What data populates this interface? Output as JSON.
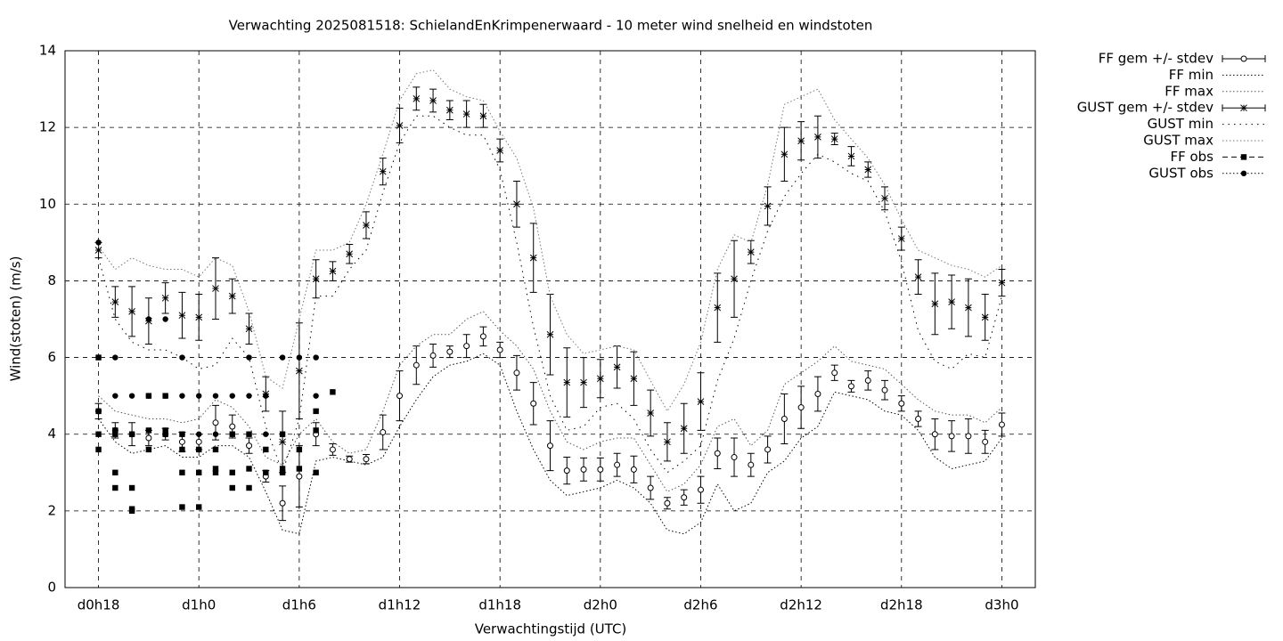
{
  "chart_data": {
    "type": "errorbar",
    "title": "Verwachting 2025081518: SchielandEnKrimpenerwaard - 10 meter wind snelheid en windstoten",
    "x_label": "Verwachtingstijd (UTC)",
    "y_label": "Wind(stoten) (m/s)",
    "xlim": [
      16,
      74
    ],
    "ylim": [
      0,
      14
    ],
    "yticks": [
      0,
      2,
      4,
      6,
      8,
      10,
      12,
      14
    ],
    "xticks": [
      {
        "value": 18,
        "label": "d0h18"
      },
      {
        "value": 24,
        "label": "d1h0"
      },
      {
        "value": 30,
        "label": "d1h6"
      },
      {
        "value": 36,
        "label": "d1h12"
      },
      {
        "value": 42,
        "label": "d1h18"
      },
      {
        "value": 48,
        "label": "d2h0"
      },
      {
        "value": 54,
        "label": "d2h6"
      },
      {
        "value": 60,
        "label": "d2h12"
      },
      {
        "value": 66,
        "label": "d2h18"
      },
      {
        "value": 72,
        "label": "d3h0"
      }
    ],
    "grid": true,
    "legend": "outside-right",
    "x": [
      18,
      19,
      20,
      21,
      22,
      23,
      24,
      25,
      26,
      27,
      28,
      29,
      30,
      31,
      32,
      33,
      34,
      35,
      36,
      37,
      38,
      39,
      40,
      41,
      42,
      43,
      44,
      45,
      46,
      47,
      48,
      49,
      50,
      51,
      52,
      53,
      54,
      55,
      56,
      57,
      58,
      59,
      60,
      61,
      62,
      63,
      64,
      65,
      66,
      67,
      68,
      69,
      70,
      71,
      72
    ],
    "series": [
      {
        "name": "FF gem +/- stdev",
        "color": "#000000",
        "marker": "circle-open",
        "dash": "solid",
        "values": [
          4.6,
          4.1,
          4.0,
          3.9,
          4.0,
          3.8,
          3.8,
          4.3,
          4.2,
          3.7,
          2.9,
          2.2,
          2.9,
          4.0,
          3.6,
          3.35,
          3.35,
          4.05,
          5.0,
          5.8,
          6.05,
          6.15,
          6.3,
          6.55,
          6.2,
          5.6,
          4.8,
          3.7,
          3.05,
          3.08,
          3.08,
          3.2,
          3.08,
          2.6,
          2.2,
          2.35,
          2.55,
          3.5,
          3.4,
          3.2,
          3.6,
          4.4,
          4.7,
          5.05,
          5.6,
          5.25,
          5.4,
          5.15,
          4.8,
          4.4,
          4.0,
          3.95,
          3.95,
          3.8,
          4.25
        ],
        "errors": [
          0.2,
          0.2,
          0.3,
          0.2,
          0.15,
          0.25,
          0.2,
          0.45,
          0.3,
          0.2,
          0.15,
          0.45,
          0.8,
          0.3,
          0.15,
          0.08,
          0.12,
          0.45,
          0.65,
          0.5,
          0.3,
          0.15,
          0.3,
          0.25,
          0.2,
          0.45,
          0.55,
          0.65,
          0.35,
          0.3,
          0.3,
          0.3,
          0.35,
          0.3,
          0.15,
          0.2,
          0.35,
          0.4,
          0.5,
          0.3,
          0.35,
          0.65,
          0.55,
          0.45,
          0.2,
          0.15,
          0.25,
          0.25,
          0.2,
          0.2,
          0.4,
          0.4,
          0.45,
          0.3,
          0.3
        ]
      },
      {
        "name": "FF min",
        "color": "#000000",
        "dash": "dotted",
        "values": [
          4.4,
          3.8,
          3.5,
          3.6,
          3.7,
          3.4,
          3.4,
          3.7,
          3.7,
          3.4,
          2.5,
          1.5,
          1.4,
          3.3,
          3.4,
          3.3,
          3.2,
          3.4,
          4.2,
          4.9,
          5.5,
          5.8,
          5.9,
          6.1,
          5.8,
          4.6,
          3.6,
          2.8,
          2.4,
          2.5,
          2.6,
          2.8,
          2.6,
          2.2,
          1.5,
          1.4,
          1.7,
          2.7,
          2.0,
          2.2,
          3.0,
          3.3,
          3.9,
          4.2,
          5.1,
          5.0,
          4.9,
          4.6,
          4.5,
          4.1,
          3.4,
          3.1,
          3.2,
          3.3,
          3.9
        ]
      },
      {
        "name": "FF max",
        "color": "#555555",
        "dash": "dotted",
        "values": [
          5.0,
          4.6,
          4.5,
          4.4,
          4.4,
          4.3,
          4.4,
          4.9,
          4.7,
          4.2,
          3.4,
          3.2,
          4.0,
          4.4,
          3.8,
          3.5,
          3.6,
          4.6,
          5.8,
          6.3,
          6.6,
          6.6,
          7.0,
          7.2,
          6.7,
          6.3,
          5.7,
          4.6,
          3.8,
          3.6,
          3.8,
          3.9,
          3.9,
          3.2,
          2.5,
          2.7,
          3.2,
          4.2,
          4.4,
          3.7,
          4.1,
          5.3,
          5.6,
          5.9,
          6.3,
          5.9,
          5.8,
          5.7,
          5.3,
          4.9,
          4.6,
          4.5,
          4.5,
          4.3,
          4.7
        ]
      },
      {
        "name": "GUST gem +/- stdev",
        "color": "#000000",
        "marker": "star",
        "dash": "solid",
        "values": [
          8.8,
          7.45,
          7.2,
          6.95,
          7.55,
          7.1,
          7.05,
          7.8,
          7.6,
          6.75,
          5.05,
          3.8,
          5.65,
          8.05,
          8.25,
          8.7,
          9.45,
          10.85,
          12.05,
          12.75,
          12.7,
          12.45,
          12.35,
          12.3,
          11.4,
          10.0,
          8.6,
          6.6,
          5.35,
          5.35,
          5.45,
          5.75,
          5.45,
          4.55,
          3.8,
          4.15,
          4.85,
          7.3,
          8.05,
          8.75,
          9.95,
          11.3,
          11.65,
          11.75,
          11.7,
          11.25,
          10.9,
          10.15,
          9.1,
          8.1,
          7.4,
          7.45,
          7.3,
          7.05,
          7.95
        ],
        "errors": [
          0.2,
          0.4,
          0.65,
          0.6,
          0.4,
          0.6,
          0.6,
          0.8,
          0.45,
          0.4,
          0.45,
          0.8,
          1.25,
          0.5,
          0.25,
          0.25,
          0.35,
          0.35,
          0.45,
          0.3,
          0.3,
          0.25,
          0.35,
          0.3,
          0.3,
          0.6,
          0.9,
          1.05,
          0.9,
          0.65,
          0.5,
          0.55,
          0.7,
          0.6,
          0.5,
          0.65,
          0.75,
          0.9,
          1.0,
          0.3,
          0.5,
          0.7,
          0.5,
          0.55,
          0.15,
          0.25,
          0.2,
          0.3,
          0.3,
          0.45,
          0.8,
          0.7,
          0.75,
          0.6,
          0.35
        ]
      },
      {
        "name": "GUST min",
        "color": "#000000",
        "dash": "sparse",
        "values": [
          8.6,
          7.0,
          6.4,
          6.2,
          6.2,
          6.0,
          5.7,
          5.8,
          6.5,
          6.0,
          4.2,
          3.0,
          4.4,
          7.6,
          7.6,
          8.3,
          8.8,
          10.3,
          11.6,
          12.3,
          12.3,
          12.0,
          11.8,
          11.8,
          10.9,
          9.0,
          6.8,
          5.0,
          4.1,
          4.2,
          4.7,
          4.8,
          4.4,
          3.6,
          3.0,
          3.3,
          3.7,
          5.4,
          6.5,
          8.0,
          9.3,
          10.2,
          10.8,
          11.3,
          11.1,
          10.8,
          10.6,
          9.8,
          8.5,
          6.7,
          5.9,
          5.7,
          6.1,
          6.0,
          7.6
        ]
      },
      {
        "name": "GUST max",
        "color": "#777777",
        "dash": "dotted",
        "values": [
          8.9,
          8.3,
          8.6,
          8.4,
          8.3,
          8.3,
          8.1,
          8.6,
          8.4,
          7.2,
          5.5,
          5.2,
          7.0,
          8.8,
          8.8,
          9.0,
          10.0,
          11.3,
          12.7,
          13.4,
          13.5,
          13.0,
          12.8,
          12.7,
          11.9,
          11.2,
          9.9,
          7.6,
          6.6,
          6.1,
          6.2,
          6.3,
          6.2,
          5.4,
          4.6,
          5.3,
          6.4,
          8.3,
          9.2,
          9.0,
          10.5,
          12.6,
          12.8,
          13.0,
          12.2,
          11.7,
          11.2,
          10.5,
          9.6,
          8.8,
          8.6,
          8.4,
          8.3,
          8.1,
          8.4
        ]
      },
      {
        "name": "FF obs",
        "color": "#000000",
        "marker": "square",
        "dash": "dashed",
        "x": [
          18,
          18,
          18,
          18,
          19,
          19,
          19,
          19,
          20,
          20,
          20,
          20,
          21,
          21,
          21,
          22,
          22,
          22,
          23,
          23,
          23,
          23,
          24,
          24,
          24,
          25,
          25,
          25,
          26,
          26,
          26,
          27,
          27,
          27,
          28,
          28,
          29,
          29,
          29,
          30,
          30,
          31,
          31,
          31,
          32
        ],
        "values": [
          6.0,
          4.6,
          4.0,
          3.6,
          4.1,
          4.0,
          3.0,
          2.6,
          4.0,
          2.6,
          2.05,
          2.0,
          5.0,
          4.1,
          3.6,
          5.0,
          4.1,
          4.0,
          4.0,
          3.6,
          3.0,
          2.1,
          3.6,
          3.0,
          2.1,
          3.6,
          3.1,
          3.0,
          4.0,
          3.0,
          2.6,
          4.0,
          3.1,
          2.6,
          3.6,
          3.0,
          4.0,
          3.1,
          3.0,
          3.6,
          3.1,
          4.6,
          4.1,
          3.0,
          5.1
        ]
      },
      {
        "name": "GUST obs",
        "color": "#000000",
        "marker": "circle",
        "dash": "dotted",
        "x": [
          18,
          18,
          19,
          19,
          20,
          20,
          21,
          21,
          22,
          22,
          23,
          23,
          24,
          24,
          25,
          25,
          26,
          27,
          27,
          28,
          28,
          29,
          30,
          31,
          31
        ],
        "values": [
          9.0,
          4.6,
          6.0,
          5.0,
          5.0,
          4.0,
          7.0,
          5.0,
          7.0,
          5.0,
          6.0,
          5.0,
          5.0,
          4.0,
          5.0,
          4.0,
          5.0,
          6.0,
          5.0,
          5.0,
          4.0,
          6.0,
          6.0,
          6.0,
          5.0
        ]
      }
    ]
  }
}
